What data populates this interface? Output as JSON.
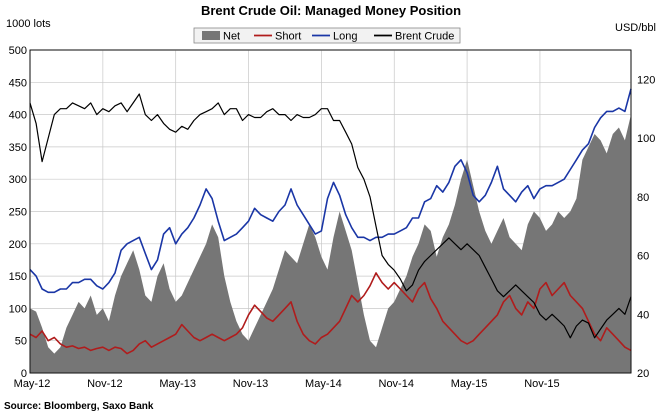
{
  "chart_data": {
    "type": "line",
    "title": "Brent Crude Oil: Managed Money Position",
    "ylabel_left": "1000 lots",
    "ylabel_right": "USD/bbl",
    "source": "Source: Bloomberg, Saxo Bank",
    "legend_position": "top-center",
    "grid": true,
    "ylim_left": [
      0,
      500
    ],
    "ylim_right": [
      20,
      130
    ],
    "yticks_left": [
      0,
      50,
      100,
      150,
      200,
      250,
      300,
      350,
      400,
      450,
      500
    ],
    "yticks_right": [
      20,
      40,
      60,
      80,
      100,
      120
    ],
    "x_range": [
      0,
      49.5
    ],
    "x_ticks": [
      {
        "label": "May-12",
        "x": 0
      },
      {
        "label": "Nov-12",
        "x": 6
      },
      {
        "label": "May-13",
        "x": 12
      },
      {
        "label": "Nov-13",
        "x": 18
      },
      {
        "label": "May-14",
        "x": 24
      },
      {
        "label": "Nov-14",
        "x": 30
      },
      {
        "label": "May-15",
        "x": 36
      },
      {
        "label": "Nov-15",
        "x": 42
      }
    ],
    "series": [
      {
        "name": "Net",
        "kind": "area",
        "axis": "left",
        "color": "#767676",
        "x": [
          0,
          0.5,
          1,
          1.5,
          2,
          2.5,
          3,
          3.5,
          4,
          4.5,
          5,
          5.5,
          6,
          6.5,
          7,
          7.5,
          8,
          8.5,
          9,
          9.5,
          10,
          10.5,
          11,
          11.5,
          12,
          12.5,
          13,
          13.5,
          14,
          14.5,
          15,
          15.5,
          16,
          16.5,
          17,
          17.5,
          18,
          18.5,
          19,
          19.5,
          20,
          20.5,
          21,
          21.5,
          22,
          22.5,
          23,
          23.5,
          24,
          24.5,
          25,
          25.5,
          26,
          26.5,
          27,
          27.5,
          28,
          28.5,
          29,
          29.5,
          30,
          30.5,
          31,
          31.5,
          32,
          32.5,
          33,
          33.5,
          34,
          34.5,
          35,
          35.5,
          36,
          36.5,
          37,
          37.5,
          38,
          38.5,
          39,
          39.5,
          40,
          40.5,
          41,
          41.5,
          42,
          42.5,
          43,
          43.5,
          44,
          44.5,
          45,
          45.5,
          46,
          46.5,
          47,
          47.5,
          48,
          48.5,
          49,
          49.5
        ],
        "values": [
          100,
          95,
          70,
          40,
          30,
          40,
          70,
          90,
          110,
          100,
          120,
          90,
          100,
          80,
          120,
          150,
          170,
          190,
          160,
          120,
          110,
          150,
          170,
          130,
          110,
          120,
          140,
          160,
          180,
          200,
          230,
          210,
          150,
          110,
          80,
          60,
          50,
          70,
          90,
          110,
          130,
          160,
          190,
          180,
          170,
          200,
          230,
          210,
          180,
          160,
          210,
          250,
          220,
          190,
          140,
          90,
          50,
          40,
          70,
          100,
          110,
          130,
          150,
          180,
          200,
          230,
          220,
          180,
          210,
          230,
          260,
          300,
          330,
          290,
          250,
          220,
          200,
          220,
          240,
          210,
          200,
          190,
          230,
          250,
          240,
          220,
          230,
          250,
          240,
          250,
          270,
          330,
          350,
          370,
          360,
          340,
          370,
          380,
          360,
          400
        ]
      },
      {
        "name": "Short",
        "kind": "line",
        "axis": "left",
        "color": "#b01c1c",
        "x": [
          0,
          0.5,
          1,
          1.5,
          2,
          2.5,
          3,
          3.5,
          4,
          4.5,
          5,
          5.5,
          6,
          6.5,
          7,
          7.5,
          8,
          8.5,
          9,
          9.5,
          10,
          10.5,
          11,
          11.5,
          12,
          12.5,
          13,
          13.5,
          14,
          14.5,
          15,
          15.5,
          16,
          16.5,
          17,
          17.5,
          18,
          18.5,
          19,
          19.5,
          20,
          20.5,
          21,
          21.5,
          22,
          22.5,
          23,
          23.5,
          24,
          24.5,
          25,
          25.5,
          26,
          26.5,
          27,
          27.5,
          28,
          28.5,
          29,
          29.5,
          30,
          30.5,
          31,
          31.5,
          32,
          32.5,
          33,
          33.5,
          34,
          34.5,
          35,
          35.5,
          36,
          36.5,
          37,
          37.5,
          38,
          38.5,
          39,
          39.5,
          40,
          40.5,
          41,
          41.5,
          42,
          42.5,
          43,
          43.5,
          44,
          44.5,
          45,
          45.5,
          46,
          46.5,
          47,
          47.5,
          48,
          48.5,
          49,
          49.5
        ],
        "values": [
          60,
          55,
          65,
          50,
          55,
          45,
          40,
          42,
          38,
          40,
          35,
          38,
          40,
          35,
          40,
          38,
          30,
          35,
          45,
          50,
          40,
          45,
          50,
          55,
          60,
          75,
          65,
          55,
          50,
          55,
          60,
          55,
          50,
          55,
          60,
          70,
          90,
          105,
          95,
          85,
          80,
          90,
          100,
          110,
          80,
          60,
          50,
          45,
          55,
          60,
          70,
          80,
          100,
          120,
          110,
          120,
          135,
          155,
          140,
          130,
          140,
          130,
          120,
          110,
          130,
          140,
          115,
          100,
          80,
          70,
          60,
          50,
          45,
          50,
          60,
          70,
          80,
          90,
          110,
          120,
          100,
          90,
          110,
          100,
          130,
          140,
          120,
          130,
          140,
          120,
          110,
          100,
          80,
          60,
          50,
          70,
          60,
          50,
          40,
          35
        ]
      },
      {
        "name": "Long",
        "kind": "line",
        "axis": "left",
        "color": "#1a36a6",
        "x": [
          0,
          0.5,
          1,
          1.5,
          2,
          2.5,
          3,
          3.5,
          4,
          4.5,
          5,
          5.5,
          6,
          6.5,
          7,
          7.5,
          8,
          8.5,
          9,
          9.5,
          10,
          10.5,
          11,
          11.5,
          12,
          12.5,
          13,
          13.5,
          14,
          14.5,
          15,
          15.5,
          16,
          16.5,
          17,
          17.5,
          18,
          18.5,
          19,
          19.5,
          20,
          20.5,
          21,
          21.5,
          22,
          22.5,
          23,
          23.5,
          24,
          24.5,
          25,
          25.5,
          26,
          26.5,
          27,
          27.5,
          28,
          28.5,
          29,
          29.5,
          30,
          30.5,
          31,
          31.5,
          32,
          32.5,
          33,
          33.5,
          34,
          34.5,
          35,
          35.5,
          36,
          36.5,
          37,
          37.5,
          38,
          38.5,
          39,
          39.5,
          40,
          40.5,
          41,
          41.5,
          42,
          42.5,
          43,
          43.5,
          44,
          44.5,
          45,
          45.5,
          46,
          46.5,
          47,
          47.5,
          48,
          48.5,
          49,
          49.5
        ],
        "values": [
          160,
          150,
          130,
          125,
          125,
          130,
          130,
          140,
          140,
          145,
          145,
          135,
          130,
          140,
          155,
          190,
          200,
          205,
          210,
          185,
          160,
          175,
          215,
          225,
          200,
          215,
          225,
          240,
          260,
          285,
          270,
          235,
          205,
          210,
          215,
          225,
          235,
          255,
          245,
          240,
          235,
          250,
          260,
          285,
          260,
          245,
          230,
          215,
          220,
          270,
          295,
          275,
          245,
          225,
          210,
          210,
          205,
          210,
          210,
          215,
          215,
          220,
          225,
          240,
          240,
          265,
          270,
          290,
          280,
          295,
          320,
          330,
          310,
          275,
          265,
          275,
          295,
          320,
          285,
          275,
          265,
          280,
          290,
          270,
          285,
          290,
          290,
          295,
          300,
          315,
          330,
          345,
          355,
          380,
          395,
          405,
          405,
          410,
          405,
          440
        ]
      },
      {
        "name": "Brent Crude",
        "kind": "line",
        "axis": "right",
        "color": "#000000",
        "x": [
          0,
          0.5,
          1,
          1.5,
          2,
          2.5,
          3,
          3.5,
          4,
          4.5,
          5,
          5.5,
          6,
          6.5,
          7,
          7.5,
          8,
          8.5,
          9,
          9.5,
          10,
          10.5,
          11,
          11.5,
          12,
          12.5,
          13,
          13.5,
          14,
          14.5,
          15,
          15.5,
          16,
          16.5,
          17,
          17.5,
          18,
          18.5,
          19,
          19.5,
          20,
          20.5,
          21,
          21.5,
          22,
          22.5,
          23,
          23.5,
          24,
          24.5,
          25,
          25.5,
          26,
          26.5,
          27,
          27.5,
          28,
          28.5,
          29,
          29.5,
          30,
          30.5,
          31,
          31.5,
          32,
          32.5,
          33,
          33.5,
          34,
          34.5,
          35,
          35.5,
          36,
          36.5,
          37,
          37.5,
          38,
          38.5,
          39,
          39.5,
          40,
          40.5,
          41,
          41.5,
          42,
          42.5,
          43,
          43.5,
          44,
          44.5,
          45,
          45.5,
          46,
          46.5,
          47,
          47.5,
          48,
          48.5,
          49,
          49.5
        ],
        "values": [
          112,
          105,
          92,
          100,
          108,
          110,
          110,
          112,
          111,
          110,
          112,
          108,
          110,
          109,
          111,
          112,
          109,
          112,
          115,
          108,
          106,
          108,
          105,
          103,
          102,
          104,
          103,
          106,
          108,
          109,
          110,
          112,
          108,
          110,
          110,
          106,
          108,
          107,
          107,
          109,
          110,
          108,
          108,
          106,
          108,
          107,
          107,
          108,
          110,
          110,
          106,
          106,
          102,
          98,
          90,
          86,
          80,
          70,
          60,
          57,
          55,
          52,
          48,
          50,
          55,
          58,
          60,
          62,
          64,
          66,
          64,
          62,
          64,
          62,
          60,
          56,
          52,
          48,
          46,
          48,
          50,
          48,
          46,
          44,
          40,
          38,
          40,
          38,
          36,
          32,
          36,
          38,
          37,
          32,
          35,
          38,
          40,
          42,
          40,
          46
        ]
      }
    ]
  }
}
